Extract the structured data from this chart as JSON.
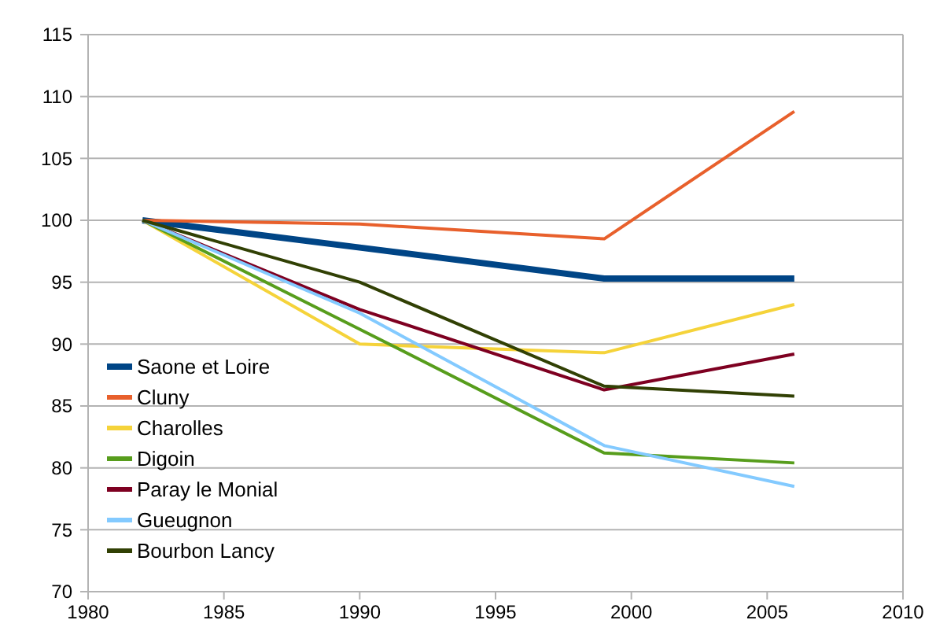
{
  "chart_data": {
    "type": "line",
    "x": [
      1982,
      1990,
      1999,
      2006
    ],
    "xlim": [
      1980,
      2010
    ],
    "xticks": [
      1980,
      1985,
      1990,
      1995,
      2000,
      2005,
      2010
    ],
    "ylim": [
      70,
      115
    ],
    "yticks": [
      70,
      75,
      80,
      85,
      90,
      95,
      100,
      105,
      110,
      115
    ],
    "grid": "y",
    "legend": "bottom left",
    "series": [
      {
        "name": "Saone et Loire",
        "color": "#004586",
        "values": [
          100,
          97.8,
          95.3,
          95.3
        ]
      },
      {
        "name": "Cluny",
        "color": "#e8602c",
        "values": [
          100,
          99.7,
          98.5,
          108.8
        ]
      },
      {
        "name": "Charolles",
        "color": "#f5d33a",
        "values": [
          100,
          90,
          89.3,
          93.2
        ]
      },
      {
        "name": "Digoin",
        "color": "#579d1c",
        "values": [
          100,
          91.2,
          81.2,
          80.4
        ]
      },
      {
        "name": "Paray le Monial",
        "color": "#7e0021",
        "values": [
          100,
          92.8,
          86.3,
          89.2
        ]
      },
      {
        "name": "Gueugnon",
        "color": "#83caff",
        "values": [
          100,
          92.5,
          81.8,
          78.5
        ]
      },
      {
        "name": "Bourbon Lancy",
        "color": "#314004",
        "values": [
          100,
          95,
          86.6,
          85.8
        ]
      }
    ]
  }
}
